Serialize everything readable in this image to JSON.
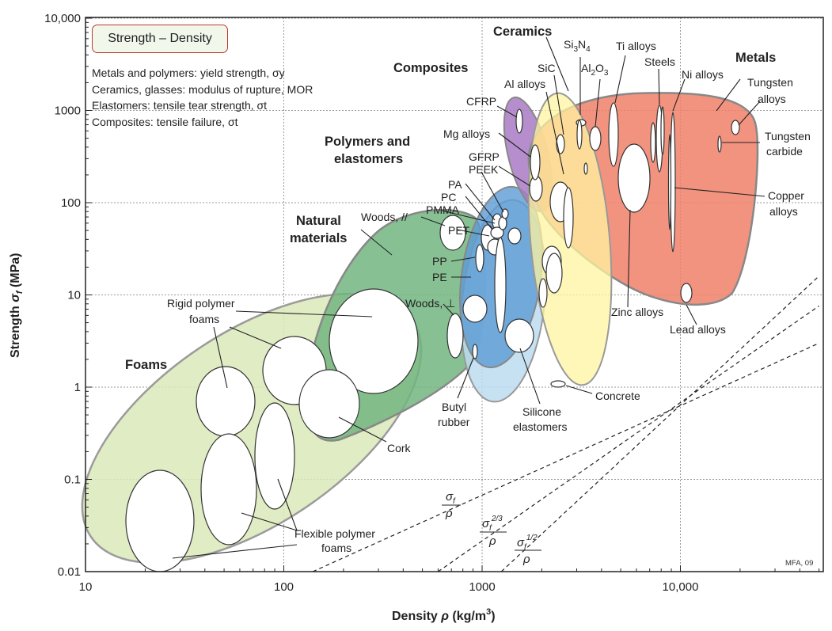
{
  "chart_data": {
    "type": "scatter",
    "subtype": "ashby-material-property-chart",
    "title": "Strength – Density",
    "notes": [
      "Metals and polymers: yield strength, σy",
      "Ceramics, glasses: modulus of rupture, MOR",
      "Elastomers: tensile tear strength, σt",
      "Composites: tensile failure, σt"
    ],
    "xlabel": "Density ρ (kg/m³)",
    "ylabel": "Strength σf (MPa)",
    "xscale": "log",
    "yscale": "log",
    "xlim": [
      10,
      50000
    ],
    "ylim": [
      0.01,
      10000
    ],
    "x_ticks": [
      10,
      100,
      1000,
      10000
    ],
    "x_tick_labels": [
      "10",
      "100",
      "1000",
      "10,000"
    ],
    "y_ticks": [
      0.01,
      0.1,
      1,
      10,
      100,
      1000,
      10000
    ],
    "y_tick_labels": [
      "0.01",
      "0.1",
      "1",
      "10",
      "100",
      "1000",
      "10,000"
    ],
    "grid": true,
    "credit": "MFA, 09",
    "families": [
      {
        "name": "Foams",
        "color": "#d9e8b4",
        "rho_range": [
          12,
          500
        ],
        "sigma_range": [
          0.01,
          20
        ]
      },
      {
        "name": "Natural materials",
        "color": "#7fbf8a",
        "rho_range": [
          110,
          1050
        ],
        "sigma_range": [
          0.4,
          120
        ]
      },
      {
        "name": "Polymers and elastomers",
        "color": "#6fa8dc",
        "rho_range": [
          900,
          2200
        ],
        "sigma_range": [
          0.3,
          150
        ]
      },
      {
        "name": "Composites",
        "color": "#b48ecb",
        "rho_range": [
          1300,
          2200
        ],
        "sigma_range": [
          60,
          1500
        ]
      },
      {
        "name": "Ceramics",
        "color": "#fff3a0",
        "rho_range": [
          1800,
          6000
        ],
        "sigma_range": [
          1,
          6000
        ]
      },
      {
        "name": "Metals",
        "color": "#f08070",
        "rho_range": [
          1700,
          23000
        ],
        "sigma_range": [
          8,
          2500
        ]
      }
    ],
    "materials": [
      {
        "name": "Rigid polymer foams",
        "rho_range": [
          35,
          520
        ],
        "sigma_range": [
          0.5,
          50
        ]
      },
      {
        "name": "Flexible polymer foams",
        "rho_range": [
          20,
          150
        ],
        "sigma_range": [
          0.01,
          1.2
        ]
      },
      {
        "name": "Cork",
        "rho_range": [
          120,
          240
        ],
        "sigma_range": [
          0.3,
          2.5
        ]
      },
      {
        "name": "Woods, ∥",
        "rho_range": [
          550,
          800
        ],
        "sigma_range": [
          30,
          50
        ]
      },
      {
        "name": "Woods, ⊥",
        "rho_range": [
          640,
          750
        ],
        "sigma_range": [
          1.5,
          8
        ]
      },
      {
        "name": "PET",
        "rho_range": [
          1300,
          1400
        ],
        "sigma_range": [
          50,
          70
        ]
      },
      {
        "name": "PP",
        "rho_range": [
          900,
          910
        ],
        "sigma_range": [
          20,
          35
        ]
      },
      {
        "name": "PE",
        "rho_range": [
          920,
          960
        ],
        "sigma_range": [
          15,
          30
        ]
      },
      {
        "name": "PA",
        "rho_range": [
          1100,
          1150
        ],
        "sigma_range": [
          60,
          95
        ]
      },
      {
        "name": "PC",
        "rho_range": [
          1200,
          1220
        ],
        "sigma_range": [
          60,
          70
        ]
      },
      {
        "name": "PMMA",
        "rho_range": [
          1180,
          1200
        ],
        "sigma_range": [
          55,
          75
        ]
      },
      {
        "name": "PEEK",
        "rho_range": [
          1300,
          1320
        ],
        "sigma_range": [
          65,
          95
        ]
      },
      {
        "name": "Butyl rubber",
        "rho_range": [
          900,
          920
        ],
        "sigma_range": [
          2,
          3
        ]
      },
      {
        "name": "Silicone elastomers",
        "rho_range": [
          1300,
          1800
        ],
        "sigma_range": [
          2.4,
          5.5
        ]
      },
      {
        "name": "CFRP",
        "rho_range": [
          1500,
          1600
        ],
        "sigma_range": [
          550,
          1050
        ]
      },
      {
        "name": "GFRP",
        "rho_range": [
          1750,
          2000
        ],
        "sigma_range": [
          110,
          190
        ]
      },
      {
        "name": "Mg alloys",
        "rho_range": [
          1740,
          1950
        ],
        "sigma_range": [
          70,
          300
        ]
      },
      {
        "name": "Al alloys",
        "rho_range": [
          2500,
          2900
        ],
        "sigma_range": [
          30,
          500
        ]
      },
      {
        "name": "SiC",
        "rho_range": [
          3000,
          3200
        ],
        "sigma_range": [
          400,
          600
        ]
      },
      {
        "name": "Si3N4",
        "rho_range": [
          3000,
          3300
        ],
        "sigma_range": [
          600,
          900
        ]
      },
      {
        "name": "Al2O3",
        "rho_range": [
          3500,
          3980
        ],
        "sigma_range": [
          300,
          700
        ]
      },
      {
        "name": "Ti alloys",
        "rho_range": [
          4400,
          4800
        ],
        "sigma_range": [
          170,
          1200
        ]
      },
      {
        "name": "Steels",
        "rho_range": [
          7600,
          8100
        ],
        "sigma_range": [
          150,
          1500
        ]
      },
      {
        "name": "Ni alloys",
        "rho_range": [
          8300,
          9200
        ],
        "sigma_range": [
          70,
          1500
        ]
      },
      {
        "name": "Tungsten alloys",
        "rho_range": [
          18000,
          19500
        ],
        "sigma_range": [
          500,
          800
        ]
      },
      {
        "name": "Tungsten carbide",
        "rho_range": [
          15000,
          15600
        ],
        "sigma_range": [
          340,
          550
        ]
      },
      {
        "name": "Copper alloys",
        "rho_range": [
          8900,
          8950
        ],
        "sigma_range": [
          30,
          500
        ]
      },
      {
        "name": "Zinc alloys",
        "rho_range": [
          5000,
          7000
        ],
        "sigma_range": [
          80,
          450
        ]
      },
      {
        "name": "Lead alloys",
        "rho_range": [
          10000,
          11000
        ],
        "sigma_range": [
          8,
          14
        ]
      },
      {
        "name": "Concrete",
        "rho_range": [
          2200,
          2600
        ],
        "sigma_range": [
          1,
          1.3
        ]
      }
    ],
    "guidelines": [
      {
        "label_num": "σf",
        "label_den": "ρ",
        "points": [
          [
            140,
            0.01
          ],
          [
            50000,
            3
          ]
        ]
      },
      {
        "label_num": "σf2/3",
        "label_den": "ρ",
        "points": [
          [
            600,
            0.01
          ],
          [
            50000,
            7.6
          ]
        ]
      },
      {
        "label_num": "σf1/2",
        "label_den": "ρ",
        "points": [
          [
            1250,
            0.01
          ],
          [
            50000,
            16
          ]
        ]
      }
    ]
  },
  "labels": {
    "family_titles": {
      "ceramics": "Ceramics",
      "composites": "Composites",
      "metals": "Metals",
      "polymers_line1": "Polymers and",
      "polymers_line2": "elastomers",
      "natural_line1": "Natural",
      "natural_line2": "materials",
      "foams": "Foams"
    },
    "materials": {
      "si3n4_a": "Si",
      "si3n4_b": "3",
      "si3n4_c": "N",
      "si3n4_d": "4",
      "al2o3_a": "Al",
      "al2o3_b": "2",
      "al2o3_c": "O",
      "al2o3_d": "3",
      "sic": "SiC",
      "ti": "Ti alloys",
      "steels": "Steels",
      "ni": "Ni alloys",
      "al": "Al alloys",
      "cfrp": "CFRP",
      "mg": "Mg alloys",
      "gfrp": "GFRP",
      "peek": "PEEK",
      "pa": "PA",
      "pc": "PC",
      "pmma": "PMMA",
      "pet": "PET",
      "woods_par": "Woods, //",
      "pp": "PP",
      "pe": "PE",
      "woods_perp": "Woods, ⊥",
      "rigid1": "Rigid polymer",
      "rigid2": "foams",
      "flex1": "Flexible polymer",
      "flex2": "foams",
      "cork": "Cork",
      "butyl1": "Butyl",
      "butyl2": "rubber",
      "silicone1": "Silicone",
      "silicone2": "elastomers",
      "concrete": "Concrete",
      "zinc": "Zinc alloys",
      "lead": "Lead alloys",
      "tungsten1": "Tungsten",
      "tungsten2": "alloys",
      "wc1": "Tungsten",
      "wc2": "carbide",
      "copper1": "Copper",
      "copper2": "alloys"
    },
    "guides": {
      "g1_num": "σ",
      "g1_sub": "f",
      "g1_den": "ρ",
      "g2_num": "σ",
      "g2_sub": "f",
      "g2_sup": "2/3",
      "g2_den": "ρ",
      "g3_num": "σ",
      "g3_sub": "f",
      "g3_sup": "1/2",
      "g3_den": "ρ"
    },
    "axes": {
      "x_main": "Density ",
      "x_sym": "ρ",
      "x_unit": " (kg/m",
      "x_sup": "3",
      "x_close": ")",
      "y_main": "Strength ",
      "y_sym": "σ",
      "y_sub": "f",
      "y_unit": " (MPa)"
    }
  }
}
